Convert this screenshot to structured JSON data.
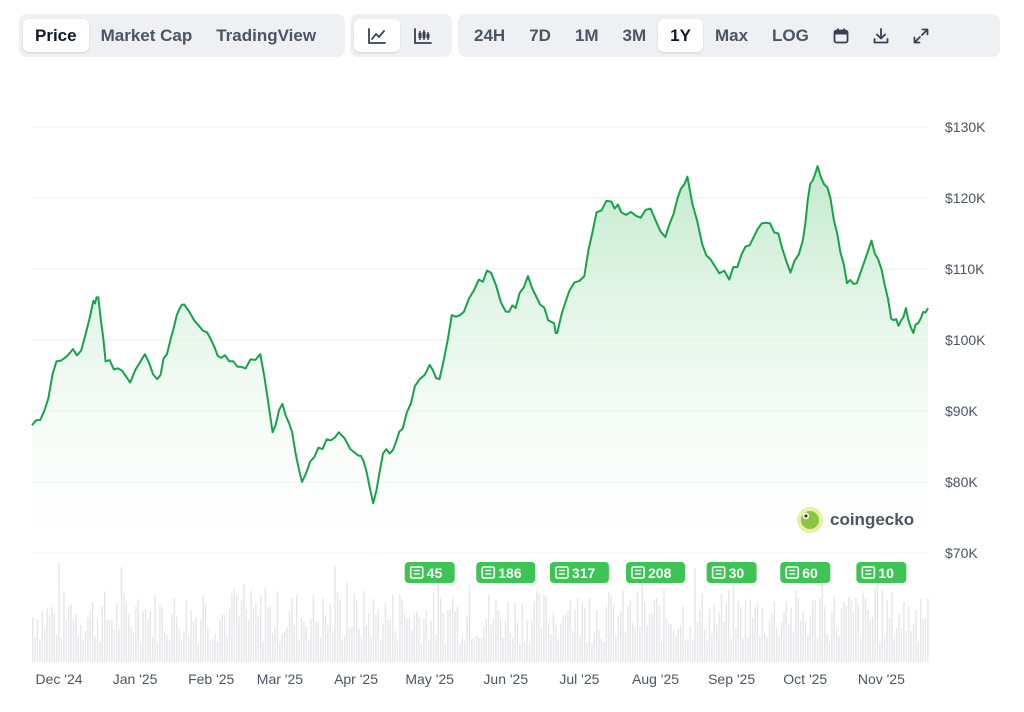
{
  "toolbar": {
    "metric_tabs": [
      {
        "label": "Price",
        "active": true
      },
      {
        "label": "Market Cap",
        "active": false
      },
      {
        "label": "TradingView",
        "active": false
      }
    ],
    "chart_type_tabs": [
      {
        "icon": "line-chart-icon",
        "active": true
      },
      {
        "icon": "candlestick-icon",
        "active": false
      }
    ],
    "range_tabs": [
      {
        "label": "24H",
        "active": false
      },
      {
        "label": "7D",
        "active": false
      },
      {
        "label": "1M",
        "active": false
      },
      {
        "label": "3M",
        "active": false
      },
      {
        "label": "1Y",
        "active": true
      },
      {
        "label": "Max",
        "active": false
      },
      {
        "label": "LOG",
        "active": false
      }
    ],
    "tool_icons": [
      "calendar-icon",
      "download-icon",
      "fullscreen-icon"
    ]
  },
  "colors": {
    "line": "#16a34a",
    "fill_top": "#bfe9c9",
    "badge": "#3dc455",
    "grid": "#eceff3",
    "volume": "#e5e7eb"
  },
  "brand": {
    "name": "coingecko"
  },
  "chart_data": {
    "type": "area",
    "title": "",
    "xlabel": "",
    "ylabel": "",
    "ylim": [
      70000,
      130000
    ],
    "y_ticks": [
      "$130K",
      "$120K",
      "$110K",
      "$100K",
      "$90K",
      "$80K",
      "$70K"
    ],
    "y_tick_values": [
      130000,
      120000,
      110000,
      100000,
      90000,
      80000,
      70000
    ],
    "x_ticks": [
      "Dec '24",
      "Jan '25",
      "Feb '25",
      "Mar '25",
      "Apr '25",
      "May '25",
      "Jun '25",
      "Jul '25",
      "Aug '25",
      "Sep '25",
      "Oct '25",
      "Nov '25"
    ],
    "x_tick_dates": [
      "2024-12-01",
      "2025-01-01",
      "2025-02-01",
      "2025-03-01",
      "2025-04-01",
      "2025-05-01",
      "2025-06-01",
      "2025-07-01",
      "2025-08-01",
      "2025-09-01",
      "2025-10-01",
      "2025-11-01"
    ],
    "x_range": [
      "2024-11-20",
      "2025-11-20"
    ],
    "grid": true,
    "series": [
      {
        "x": [
          "2024-11-20",
          "2024-11-25",
          "2024-11-30",
          "2024-12-05",
          "2024-12-10",
          "2024-12-15",
          "2024-12-17",
          "2024-12-20",
          "2024-12-25",
          "2024-12-30",
          "2025-01-05",
          "2025-01-10",
          "2025-01-14",
          "2025-01-18",
          "2025-01-21",
          "2025-01-27",
          "2025-02-01",
          "2025-02-05",
          "2025-02-10",
          "2025-02-15",
          "2025-02-21",
          "2025-02-26",
          "2025-03-02",
          "2025-03-06",
          "2025-03-10",
          "2025-03-15",
          "2025-03-20",
          "2025-03-25",
          "2025-04-01",
          "2025-04-04",
          "2025-04-08",
          "2025-04-12",
          "2025-04-16",
          "2025-04-20",
          "2025-04-25",
          "2025-05-01",
          "2025-05-05",
          "2025-05-10",
          "2025-05-15",
          "2025-05-21",
          "2025-05-26",
          "2025-06-01",
          "2025-06-05",
          "2025-06-10",
          "2025-06-15",
          "2025-06-20",
          "2025-06-22",
          "2025-06-27",
          "2025-07-03",
          "2025-07-08",
          "2025-07-14",
          "2025-07-18",
          "2025-07-24",
          "2025-07-30",
          "2025-08-05",
          "2025-08-10",
          "2025-08-14",
          "2025-08-20",
          "2025-08-25",
          "2025-08-31",
          "2025-09-05",
          "2025-09-10",
          "2025-09-15",
          "2025-09-20",
          "2025-09-25",
          "2025-09-30",
          "2025-10-03",
          "2025-10-06",
          "2025-10-10",
          "2025-10-14",
          "2025-10-18",
          "2025-10-22",
          "2025-10-28",
          "2025-11-01",
          "2025-11-05",
          "2025-11-08",
          "2025-11-11",
          "2025-11-14",
          "2025-11-17",
          "2025-11-20"
        ],
        "values": [
          88000,
          90000,
          97000,
          98000,
          98500,
          105500,
          106000,
          97000,
          96000,
          94000,
          98000,
          94500,
          98000,
          103500,
          105000,
          102000,
          100000,
          97500,
          97000,
          96000,
          98000,
          87000,
          91000,
          87000,
          80000,
          83500,
          86000,
          87000,
          84000,
          83000,
          77000,
          84000,
          84500,
          87500,
          93500,
          96500,
          94500,
          103500,
          104000,
          108500,
          109500,
          104000,
          104500,
          109000,
          105000,
          102500,
          101000,
          107000,
          109000,
          118000,
          119500,
          118000,
          117500,
          118500,
          114500,
          120000,
          123000,
          113500,
          110500,
          108500,
          112000,
          114500,
          116500,
          115000,
          109500,
          114000,
          122000,
          124500,
          121500,
          115000,
          108000,
          108000,
          114000,
          110000,
          103000,
          102000,
          104500,
          101000,
          103000,
          104500
        ],
        "style": "line-with-area"
      }
    ],
    "news_badges": [
      {
        "label": "45",
        "date": "2025-05-01"
      },
      {
        "label": "186",
        "date": "2025-06-01"
      },
      {
        "label": "317",
        "date": "2025-07-01"
      },
      {
        "label": "208",
        "date": "2025-08-01"
      },
      {
        "label": "30",
        "date": "2025-09-01"
      },
      {
        "label": "60",
        "date": "2025-10-01"
      },
      {
        "label": "10",
        "date": "2025-11-01"
      }
    ]
  }
}
